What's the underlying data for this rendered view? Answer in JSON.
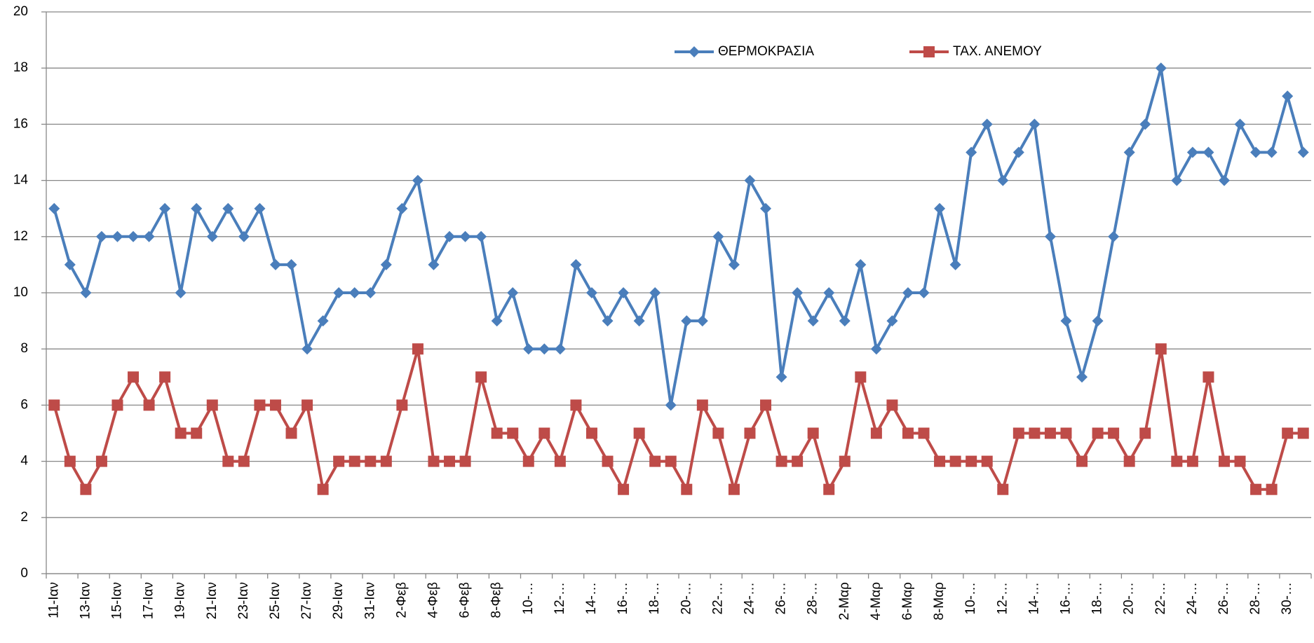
{
  "chart_data": {
    "type": "line",
    "categories": [
      "11-Ιαν",
      null,
      "13-Ιαν",
      null,
      "15-Ιαν",
      null,
      "17-Ιαν",
      null,
      "19-Ιαν",
      null,
      "21-Ιαν",
      null,
      "23-Ιαν",
      null,
      "25-Ιαν",
      null,
      "27-Ιαν",
      null,
      "29-Ιαν",
      null,
      "31-Ιαν",
      null,
      "2-Φεβ",
      null,
      "4-Φεβ",
      null,
      "6-Φεβ",
      null,
      "8-Φεβ",
      null,
      "10-…",
      null,
      "12-…",
      null,
      "14-…",
      null,
      "16-…",
      null,
      "18-…",
      null,
      "20-…",
      null,
      "22-…",
      null,
      "24-…",
      null,
      "26-…",
      null,
      "28-…",
      null,
      "2-Μαρ",
      null,
      "4-Μαρ",
      null,
      "6-Μαρ",
      null,
      "8-Μαρ",
      null,
      "10-…",
      null,
      "12-…",
      null,
      "14-…",
      null,
      "16-…",
      null,
      "18-…",
      null,
      "20-…",
      null,
      "22-…",
      null,
      "24-…",
      null,
      "26-…",
      null,
      "28-…",
      null,
      "30-…",
      null
    ],
    "series": [
      {
        "name": "ΘΕΡΜΟΚΡΑΣΙΑ",
        "color": "#4a7ebb",
        "marker": "diamond",
        "values": [
          13,
          11,
          10,
          12,
          12,
          12,
          12,
          13,
          10,
          13,
          12,
          13,
          12,
          13,
          11,
          11,
          8,
          9,
          10,
          10,
          10,
          11,
          13,
          14,
          11,
          12,
          12,
          12,
          9,
          10,
          8,
          8,
          8,
          11,
          10,
          9,
          10,
          9,
          10,
          6,
          9,
          9,
          12,
          11,
          14,
          13,
          7,
          10,
          9,
          10,
          9,
          11,
          8,
          9,
          10,
          10,
          13,
          11,
          15,
          16,
          14,
          15,
          16,
          12,
          9,
          7,
          9,
          12,
          15,
          16,
          18,
          14,
          15,
          15,
          14,
          16,
          15,
          15,
          17,
          15
        ]
      },
      {
        "name": "ΤΑΧ. ΑΝΕΜΟΥ",
        "color": "#be4b48",
        "marker": "square",
        "values": [
          6,
          4,
          3,
          4,
          6,
          7,
          6,
          7,
          5,
          5,
          6,
          4,
          4,
          6,
          6,
          5,
          6,
          3,
          4,
          4,
          4,
          4,
          6,
          8,
          4,
          4,
          4,
          7,
          5,
          5,
          4,
          5,
          4,
          6,
          5,
          4,
          3,
          5,
          4,
          4,
          3,
          6,
          5,
          3,
          5,
          6,
          4,
          4,
          5,
          3,
          4,
          7,
          5,
          6,
          5,
          5,
          4,
          4,
          4,
          4,
          3,
          5,
          5,
          5,
          5,
          4,
          5,
          5,
          4,
          5,
          8,
          4,
          4,
          7,
          4,
          4,
          3,
          3,
          5,
          5
        ]
      }
    ],
    "ylim": [
      0,
      20
    ],
    "yticks": [
      0,
      2,
      4,
      6,
      8,
      10,
      12,
      14,
      16,
      18,
      20
    ],
    "grid": true
  }
}
